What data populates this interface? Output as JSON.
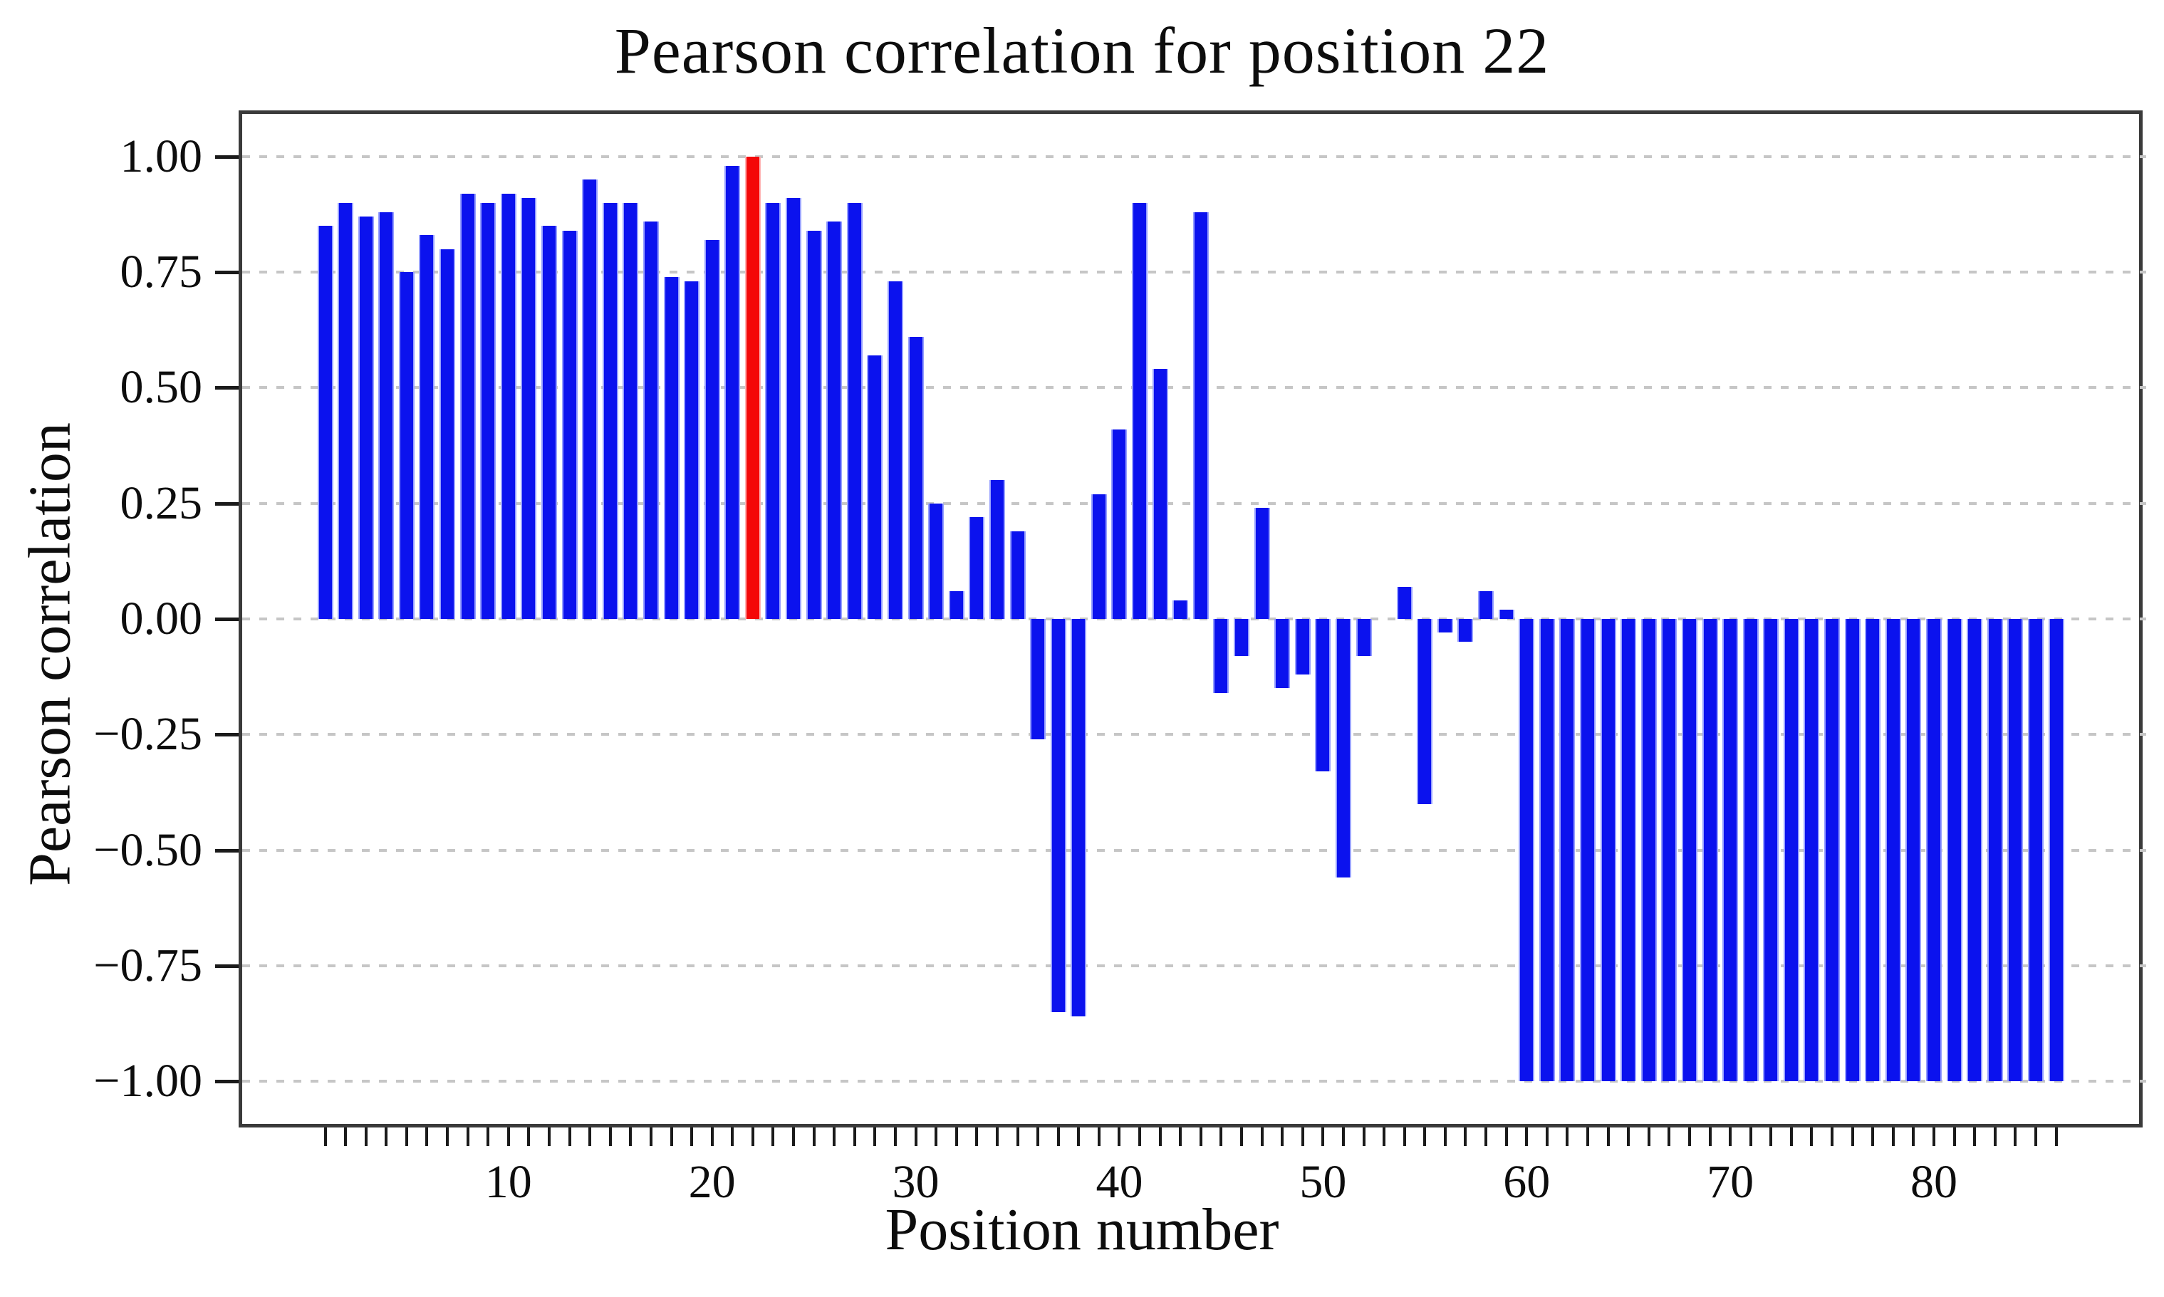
{
  "title": "Pearson correlation for position 22",
  "chart_data": {
    "type": "bar",
    "title": "Pearson correlation for position 22",
    "xlabel": "Position number",
    "ylabel": "Pearson correlation",
    "highlighted_position": 22,
    "bar_color": "#0b12ee",
    "bar_edge_color": "#97a0ff",
    "highlight_color": "#f40808",
    "highlight_edge_color": "#ffb4b4",
    "grid": "horizontal dashed, every 0.25",
    "grid_color": "#c6c6c6",
    "legend": "none",
    "xlim": [
      -3.25,
      90.25
    ],
    "ylim": [
      -1.1,
      1.1
    ],
    "yticks": [
      1.0,
      0.75,
      0.5,
      0.25,
      0.0,
      -0.25,
      -0.5,
      -0.75,
      -1.0
    ],
    "ytick_labels": [
      "1.00",
      "0.75",
      "0.50",
      "0.25",
      "0.00",
      "−0.25",
      "−0.50",
      "−0.75",
      "−1.00"
    ],
    "xticks": [
      10,
      20,
      30,
      40,
      50,
      60,
      70,
      80
    ],
    "xtick_labels": [
      "10",
      "20",
      "30",
      "40",
      "50",
      "60",
      "70",
      "80"
    ],
    "minor_xticks_every": 1,
    "positions": [
      1,
      2,
      3,
      4,
      5,
      6,
      7,
      8,
      9,
      10,
      11,
      12,
      13,
      14,
      15,
      16,
      17,
      18,
      19,
      20,
      21,
      22,
      23,
      24,
      25,
      26,
      27,
      28,
      29,
      30,
      31,
      32,
      33,
      34,
      35,
      36,
      37,
      38,
      39,
      40,
      41,
      42,
      43,
      44,
      45,
      46,
      47,
      48,
      49,
      50,
      51,
      52,
      53,
      54,
      55,
      56,
      57,
      58,
      59,
      60,
      61,
      62,
      63,
      64,
      65,
      66,
      67,
      68,
      69,
      70,
      71,
      72,
      73,
      74,
      75,
      76,
      77,
      78,
      79,
      80,
      81,
      82,
      83,
      84,
      85,
      86
    ],
    "values": [
      0.85,
      0.9,
      0.87,
      0.88,
      0.75,
      0.83,
      0.8,
      0.92,
      0.9,
      0.92,
      0.91,
      0.85,
      0.84,
      0.95,
      0.9,
      0.9,
      0.86,
      0.74,
      0.73,
      0.82,
      0.98,
      1.0,
      0.9,
      0.91,
      0.84,
      0.86,
      0.9,
      0.57,
      0.73,
      0.61,
      0.25,
      0.06,
      0.22,
      0.3,
      0.19,
      -0.26,
      -0.85,
      -0.86,
      0.27,
      0.41,
      0.9,
      0.54,
      0.04,
      0.88,
      -0.16,
      -0.08,
      0.24,
      -0.15,
      -0.12,
      -0.33,
      -0.56,
      -0.08,
      0.0,
      0.07,
      -0.4,
      -0.03,
      -0.05,
      0.06,
      0.02,
      -1.0,
      -1.0,
      -1.0,
      -1.0,
      -1.0,
      -1.0,
      -1.0,
      -1.0,
      -1.0,
      -1.0,
      -1.0,
      -1.0,
      -1.0,
      -1.0,
      -1.0,
      -1.0,
      -1.0,
      -1.0,
      -1.0,
      -1.0,
      -1.0,
      -1.0,
      -1.0,
      -1.0,
      -1.0,
      -1.0,
      -1.0
    ]
  }
}
